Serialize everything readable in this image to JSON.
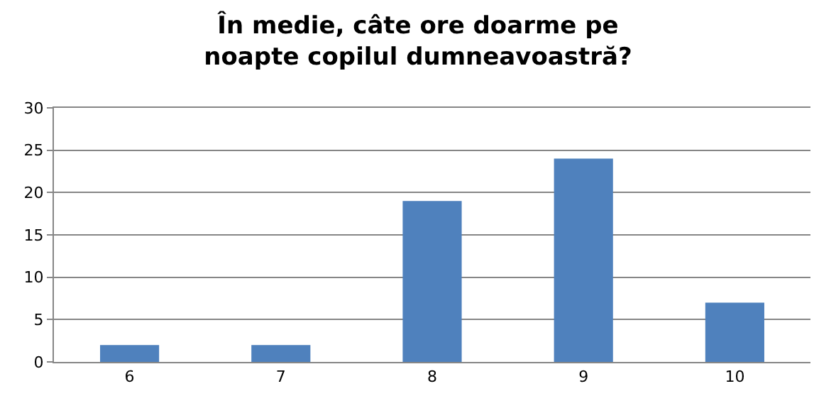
{
  "chart_data": {
    "type": "bar",
    "title": "În medie, câte ore doarme pe noapte copilul dumneavoastră?",
    "categories": [
      "6",
      "7",
      "8",
      "9",
      "10"
    ],
    "values": [
      2,
      2,
      19,
      24,
      7
    ],
    "color": "#4f81bd",
    "ylim": [
      0,
      30
    ],
    "yticks": [
      0,
      5,
      10,
      15,
      20,
      25,
      30
    ],
    "grid": "y",
    "legend": false
  }
}
